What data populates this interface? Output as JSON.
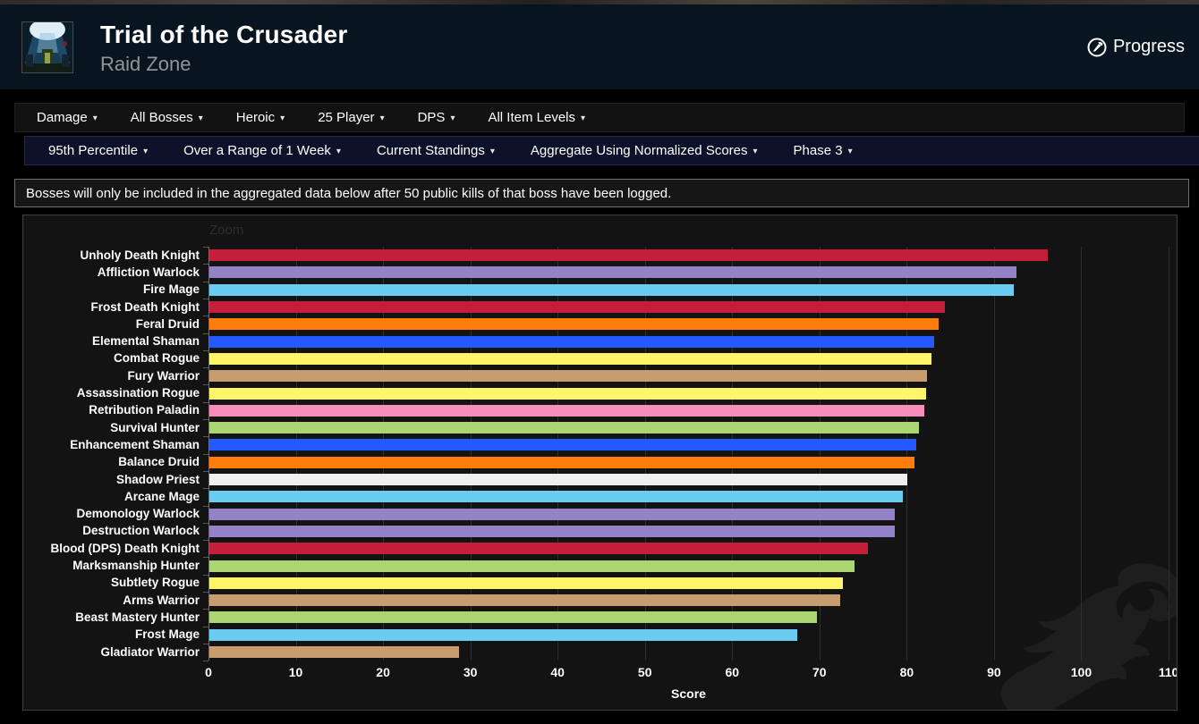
{
  "header": {
    "title": "Trial of the Crusader",
    "subtitle": "Raid Zone",
    "progress_label": "Progress"
  },
  "filters_primary": [
    "Damage",
    "All Bosses",
    "Heroic",
    "25 Player",
    "DPS",
    "All Item Levels"
  ],
  "filters_secondary": [
    "95th Percentile",
    "Over a Range of 1 Week",
    "Current Standings",
    "Aggregate Using Normalized Scores",
    "Phase 3"
  ],
  "icons": {
    "caret_glyph": "▾"
  },
  "notice": {
    "text": "Bosses will only be included in the aggregated data below after 50 public kills of that boss have been logged."
  },
  "theme_colors": {
    "header_bg": "#081520",
    "subnav_bg": "#0d1129",
    "panel_bg": "#131313",
    "text": "#ffffff"
  },
  "chart_data": {
    "type": "bar",
    "orientation": "horizontal",
    "zoom_label": "Zoom",
    "xlabel": "Score",
    "xlim": [
      0,
      110
    ],
    "xticks": [
      0,
      10,
      20,
      30,
      40,
      50,
      60,
      70,
      80,
      90,
      100,
      110
    ],
    "grid": true,
    "legend": false,
    "categories": [
      "Unholy Death Knight",
      "Affliction Warlock",
      "Fire Mage",
      "Frost Death Knight",
      "Feral Druid",
      "Elemental Shaman",
      "Combat Rogue",
      "Fury Warrior",
      "Assassination Rogue",
      "Retribution Paladin",
      "Survival Hunter",
      "Enhancement Shaman",
      "Balance Druid",
      "Shadow Priest",
      "Arcane Mage",
      "Demonology Warlock",
      "Destruction Warlock",
      "Blood (DPS) Death Knight",
      "Marksmanship Hunter",
      "Subtlety Rogue",
      "Arms Warrior",
      "Beast Mastery Hunter",
      "Frost Mage",
      "Gladiator Warrior"
    ],
    "values": [
      96.1,
      92.5,
      92.2,
      84.3,
      83.6,
      83.0,
      82.7,
      82.2,
      82.1,
      81.9,
      81.3,
      81.0,
      80.8,
      80.0,
      79.4,
      78.5,
      78.5,
      75.5,
      73.9,
      72.6,
      72.3,
      69.6,
      67.4,
      28.6
    ],
    "colors": [
      "#C41E3A",
      "#9482C9",
      "#69CCF0",
      "#C41E3A",
      "#FF7D0A",
      "#2459FF",
      "#FFF569",
      "#C79C6E",
      "#FFF569",
      "#F58CBA",
      "#ABD473",
      "#2459FF",
      "#FF7D0A",
      "#EFEFEF",
      "#69CCF0",
      "#9482C9",
      "#9482C9",
      "#C41E3A",
      "#ABD473",
      "#FFF569",
      "#C79C6E",
      "#ABD473",
      "#69CCF0",
      "#C79C6E"
    ]
  }
}
